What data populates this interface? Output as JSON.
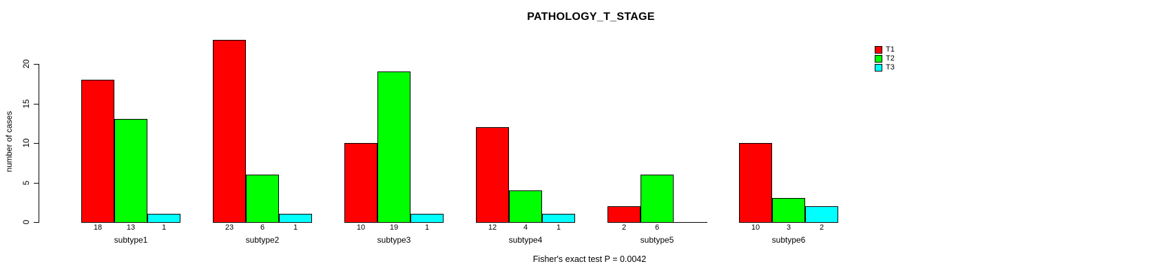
{
  "chart_data": {
    "type": "bar",
    "title": "PATHOLOGY_T_STAGE",
    "xlabel": "",
    "ylabel": "number of cases",
    "categories": [
      "subtype1",
      "subtype2",
      "subtype3",
      "subtype4",
      "subtype5",
      "subtype6"
    ],
    "series": [
      {
        "name": "T1",
        "color": "#ff0000",
        "values": [
          18,
          23,
          10,
          12,
          2,
          10
        ]
      },
      {
        "name": "T2",
        "color": "#00ff00",
        "values": [
          13,
          6,
          19,
          4,
          6,
          3
        ]
      },
      {
        "name": "T3",
        "color": "#00ffff",
        "values": [
          1,
          1,
          1,
          1,
          0,
          2
        ]
      }
    ],
    "bar_value_labels": [
      [
        "18",
        "13",
        "1"
      ],
      [
        "23",
        "6",
        "1"
      ],
      [
        "10",
        "19",
        "1"
      ],
      [
        "12",
        "4",
        "1"
      ],
      [
        "2",
        "6",
        ""
      ],
      [
        "10",
        "3",
        "2"
      ]
    ],
    "yticks": [
      0,
      5,
      10,
      15,
      20
    ],
    "ylim": [
      0,
      23
    ],
    "grid": false,
    "legend_position": "top-right",
    "legend_labels": [
      "T1",
      "T2",
      "T3"
    ],
    "annotation": "Fisher's exact test P = 0.0042",
    "axis_color": "#000000",
    "bar_border_color": "#000000"
  }
}
